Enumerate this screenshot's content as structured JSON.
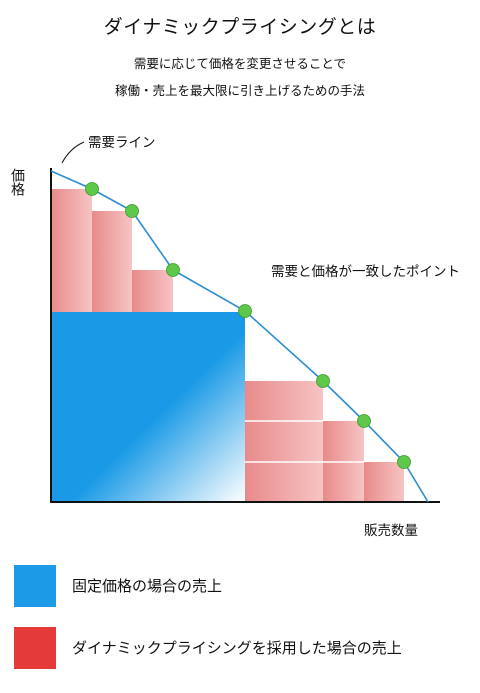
{
  "title": "ダイナミックプライシングとは",
  "subtitle_lines": [
    "需要に応じて価格を変更させることで",
    "稼働・売上を最大限に引き上げるための手法"
  ],
  "diagram": {
    "demand_line_label": "需要ライン",
    "match_point_label": "需要と価格が一致したポイント",
    "y_axis_label": "価格",
    "x_axis_label": "販売数量",
    "colors": {
      "demand_line": "#2a8fd0",
      "match_point": "#5ec84a",
      "fixed_area": "#1a9ae6",
      "dynamic_area": "#e88a8a",
      "axis": "#111111"
    }
  },
  "legend": [
    {
      "label": "固定価格の場合の売上",
      "color": "#1c9ae8"
    },
    {
      "label": "ダイナミックプライシングを採用した場合の売上",
      "color": "#e53a3a"
    }
  ]
}
